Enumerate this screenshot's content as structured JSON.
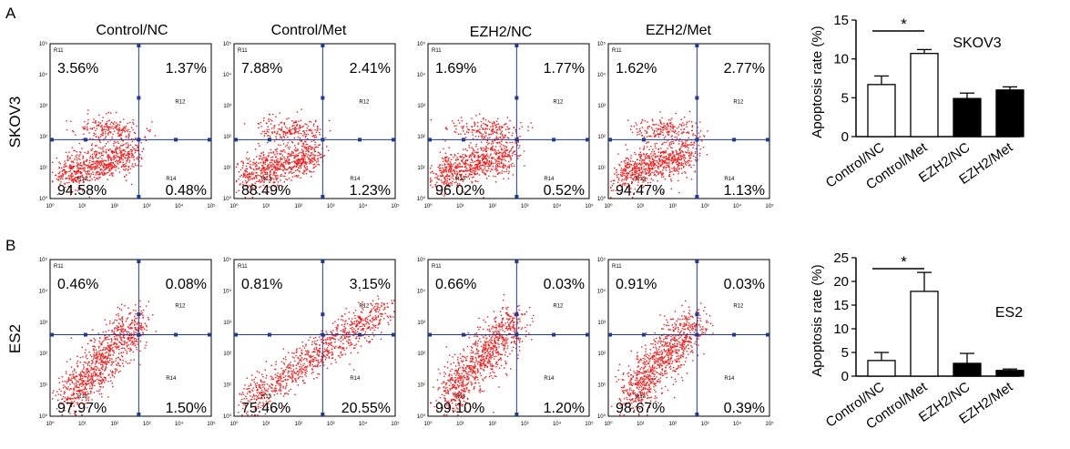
{
  "figure": {
    "panels": [
      {
        "label": "A",
        "row_label": "SKOV3",
        "scatter_plots": [
          {
            "title": "Control/NC",
            "ul": "3.56%",
            "ur": "1.37%",
            "ll": "94.58%",
            "lr": "0.48%",
            "cluster": "up"
          },
          {
            "title": "Control/Met",
            "ul": "7.88%",
            "ur": "2.41%",
            "ll": "88.49%",
            "lr": "1.23%",
            "cluster": "up2"
          },
          {
            "title": "EZH2/NC",
            "ul": "1.69%",
            "ur": "1.77%",
            "ll": "96.02%",
            "lr": "0.52%",
            "cluster": "up"
          },
          {
            "title": "EZH2/Met",
            "ul": "1.62%",
            "ur": "2.77%",
            "ll": "94.47%",
            "lr": "1.13%",
            "cluster": "up"
          }
        ],
        "region_labels": {
          "ul": "R11",
          "ur": "R12",
          "ll": "R13",
          "lr": "R14"
        },
        "x_ticks": [
          "10⁰",
          "10¹",
          "10²",
          "10³",
          "10⁴",
          "10⁵"
        ],
        "y_ticks": [
          "10⁰",
          "10¹",
          "10²",
          "10³",
          "10⁴",
          "10⁵"
        ]
      },
      {
        "label": "B",
        "row_label": "ES2",
        "scatter_plots": [
          {
            "title": "",
            "ul": "0.46%",
            "ur": "0.08%",
            "ll": "97.97%",
            "lr": "1.50%",
            "cluster": "es"
          },
          {
            "title": "",
            "ul": "0.81%",
            "ur": "3.15%",
            "ll": "75.46%",
            "lr": "20.55%",
            "cluster": "esdiag"
          },
          {
            "title": "",
            "ul": "0.66%",
            "ur": "0.03%",
            "ll": "99.10%",
            "lr": "1.20%",
            "cluster": "es"
          },
          {
            "title": "",
            "ul": "0.91%",
            "ur": "0.03%",
            "ll": "98.67%",
            "lr": "0.39%",
            "cluster": "es"
          }
        ],
        "region_labels": {
          "ul": "R11",
          "ur": "R12",
          "ll": "R13",
          "lr": "R14"
        },
        "x_ticks": [
          "10⁰",
          "10¹",
          "10²",
          "10³",
          "10⁴",
          "10⁵"
        ],
        "y_ticks": [
          "10⁰",
          "10¹",
          "10²",
          "10³",
          "10⁴",
          "10⁵"
        ]
      }
    ]
  },
  "chart_data": [
    {
      "type": "bar",
      "title": "SKOV3",
      "ylabel": "Apoptosis rate (%)",
      "categories": [
        "Control/NC",
        "Control/Met",
        "EZH2/NC",
        "EZH2/Met"
      ],
      "values": [
        6.7,
        10.7,
        4.9,
        6.0
      ],
      "errors": [
        1.1,
        0.5,
        0.7,
        0.4
      ],
      "fill_colors": [
        "#ffffff",
        "#ffffff",
        "#000000",
        "#000000"
      ],
      "ylim": [
        0,
        15
      ],
      "yticks": [
        0,
        5,
        10,
        15
      ],
      "significance": {
        "between": [
          0,
          1
        ],
        "marker": "*"
      }
    },
    {
      "type": "bar",
      "title": "ES2",
      "ylabel": "Apoptosis rate (%)",
      "categories": [
        "Control/NC",
        "Control/Met",
        "EZH2/NC",
        "EZH2/Met"
      ],
      "values": [
        3.3,
        17.9,
        2.7,
        1.2
      ],
      "errors": [
        1.7,
        4.0,
        2.1,
        0.3
      ],
      "fill_colors": [
        "#ffffff",
        "#ffffff",
        "#000000",
        "#000000"
      ],
      "ylim": [
        0,
        25
      ],
      "yticks": [
        0,
        5,
        10,
        15,
        20,
        25
      ],
      "significance": {
        "between": [
          0,
          1
        ],
        "marker": "*"
      }
    }
  ]
}
